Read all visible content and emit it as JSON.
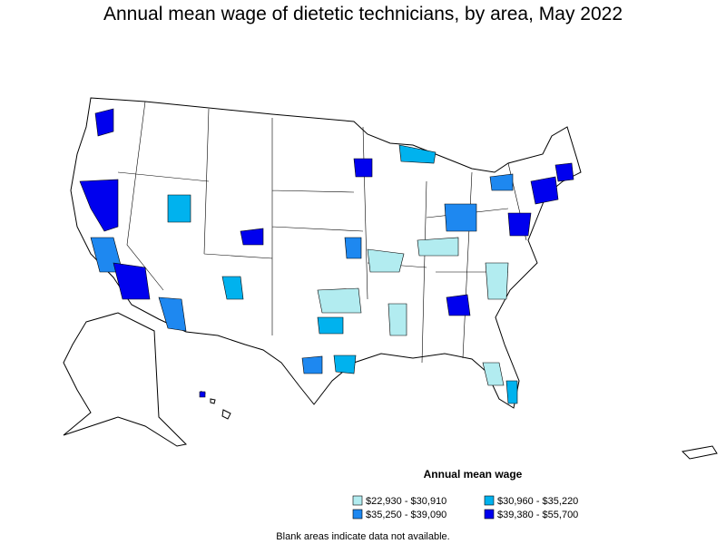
{
  "title": "Annual mean wage of dietetic technicians, by area, May 2022",
  "legend": {
    "title": "Annual mean wage",
    "items": [
      {
        "label": "$22,930 - $30,910",
        "color": "#b2ecf0"
      },
      {
        "label": "$30,960 - $35,220",
        "color": "#00b2ee"
      },
      {
        "label": "$35,250 - $39,090",
        "color": "#1e88f0"
      },
      {
        "label": "$39,380 - $55,700",
        "color": "#0000ee"
      }
    ]
  },
  "note": "Blank areas indicate data not available."
}
